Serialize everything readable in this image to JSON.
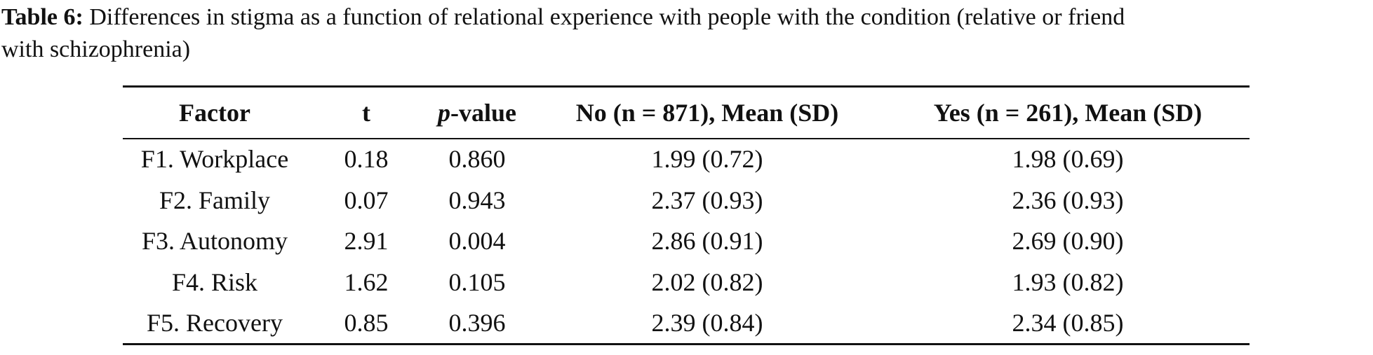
{
  "caption": {
    "label": "Table 6:",
    "line1": "Differences in stigma as a function of relational experience with people with the condition (relative or friend",
    "line2": "with schizophrenia)"
  },
  "table": {
    "columns": [
      "Factor",
      "t",
      [
        "p",
        "-value"
      ],
      "No (n = 871), Mean (SD)",
      "Yes (n = 261), Mean (SD)"
    ],
    "rows": [
      [
        "F1. Workplace",
        "0.18",
        "0.860",
        "1.99 (0.72)",
        "1.98 (0.69)"
      ],
      [
        "F2. Family",
        "0.07",
        "0.943",
        "2.37 (0.93)",
        "2.36 (0.93)"
      ],
      [
        "F3. Autonomy",
        "2.91",
        "0.004",
        "2.86 (0.91)",
        "2.69 (0.90)"
      ],
      [
        "F4. Risk",
        "1.62",
        "0.105",
        "2.02 (0.82)",
        "1.93 (0.82)"
      ],
      [
        "F5. Recovery",
        "0.85",
        "0.396",
        "2.39 (0.84)",
        "2.34 (0.85)"
      ]
    ]
  }
}
